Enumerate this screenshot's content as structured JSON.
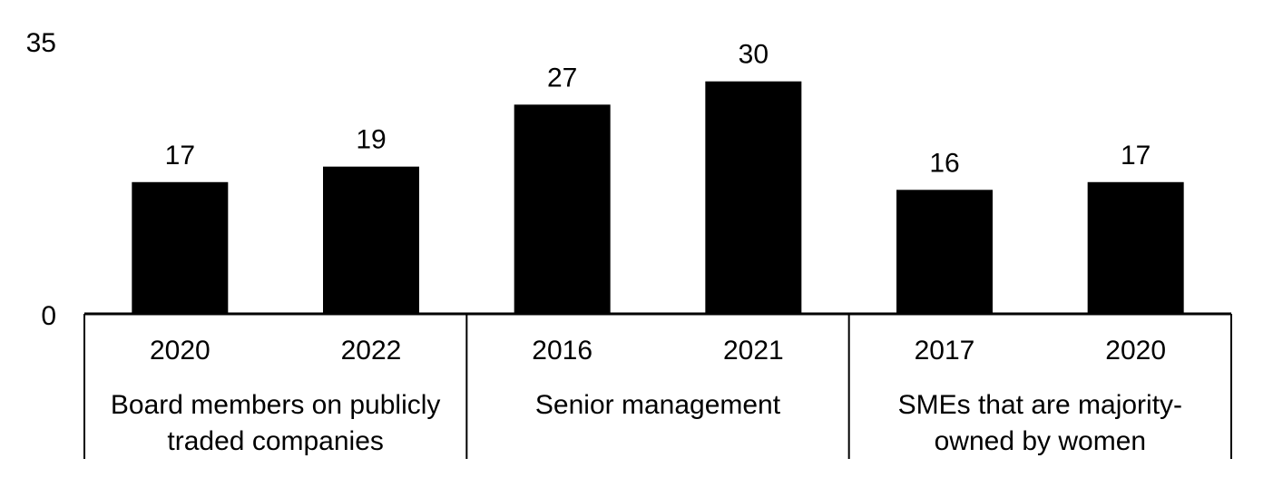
{
  "chart_data": {
    "type": "bar",
    "ylim": [
      0,
      35
    ],
    "y_ticks": [
      "0",
      "35"
    ],
    "bar_color": "#000000",
    "groups": [
      {
        "label": [
          "Board members on publicly",
          "traded companies"
        ],
        "categories": [
          "2020",
          "2022"
        ],
        "values": [
          17,
          19
        ],
        "value_labels": [
          "17",
          "19"
        ]
      },
      {
        "label": [
          "Senior management"
        ],
        "categories": [
          "2016",
          "2021"
        ],
        "values": [
          27,
          30
        ],
        "value_labels": [
          "27",
          "30"
        ]
      },
      {
        "label": [
          "SMEs that are majority-",
          "owned by women"
        ],
        "categories": [
          "2017",
          "2020"
        ],
        "values": [
          16,
          17
        ],
        "value_labels": [
          "16",
          "17"
        ]
      }
    ]
  }
}
